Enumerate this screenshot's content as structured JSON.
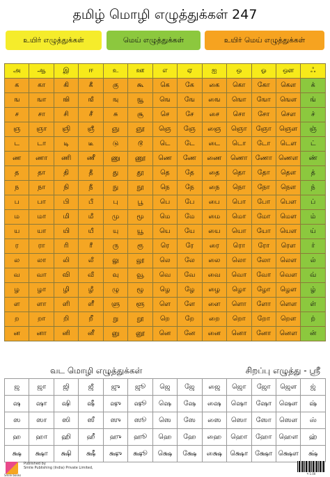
{
  "title": "தமிழ் மொழி எழுத்துக்கள் 247",
  "badges": [
    "உயிர் எழுத்துக்கள்",
    "மெய் எழுத்துக்கள்",
    "உயிர் மெய் எழுத்துக்கள்"
  ],
  "main_grid": [
    [
      "அ",
      "ஆ",
      "இ",
      "ஈ",
      "உ",
      "ஊ",
      "எ",
      "ஏ",
      "ஐ",
      "ஒ",
      "ஓ",
      "ஔ",
      "ஃ"
    ],
    [
      "க",
      "கா",
      "கி",
      "கீ",
      "கு",
      "கூ",
      "கெ",
      "கே",
      "கை",
      "கொ",
      "கோ",
      "கௌ",
      "க்"
    ],
    [
      "ங",
      "ஙா",
      "ஙி",
      "ஙீ",
      "ஙு",
      "ஙூ",
      "ஙெ",
      "ஙே",
      "ஙை",
      "ஙொ",
      "ஙோ",
      "ஙௌ",
      "ங்"
    ],
    [
      "ச",
      "சா",
      "சி",
      "சீ",
      "சு",
      "சூ",
      "செ",
      "சே",
      "சை",
      "சொ",
      "சோ",
      "சௌ",
      "ச்"
    ],
    [
      "ஞ",
      "ஞா",
      "ஞி",
      "ஞீ",
      "ஞு",
      "ஞூ",
      "ஞெ",
      "ஞே",
      "ஞை",
      "ஞொ",
      "ஞோ",
      "ஞௌ",
      "ஞ்"
    ],
    [
      "ட",
      "டா",
      "டி",
      "டீ",
      "டு",
      "டூ",
      "டெ",
      "டே",
      "டை",
      "டொ",
      "டோ",
      "டௌ",
      "ட்"
    ],
    [
      "ண",
      "ணா",
      "ணி",
      "ணீ",
      "ணு",
      "ணூ",
      "ணெ",
      "ணே",
      "ணை",
      "ணொ",
      "ணோ",
      "ணௌ",
      "ண்"
    ],
    [
      "த",
      "தா",
      "தி",
      "தீ",
      "து",
      "தூ",
      "தெ",
      "தே",
      "தை",
      "தொ",
      "தோ",
      "தௌ",
      "த்"
    ],
    [
      "ந",
      "நா",
      "நி",
      "நீ",
      "நு",
      "நூ",
      "நெ",
      "நே",
      "நை",
      "நொ",
      "நோ",
      "நௌ",
      "ந்"
    ],
    [
      "ப",
      "பா",
      "பி",
      "பீ",
      "பு",
      "பூ",
      "பெ",
      "பே",
      "பை",
      "பொ",
      "போ",
      "பௌ",
      "ப்"
    ],
    [
      "ம",
      "மா",
      "மி",
      "மீ",
      "மு",
      "மூ",
      "மெ",
      "மே",
      "மை",
      "மொ",
      "மோ",
      "மௌ",
      "ம்"
    ],
    [
      "ய",
      "யா",
      "யி",
      "யீ",
      "யு",
      "யூ",
      "யெ",
      "யே",
      "யை",
      "யொ",
      "யோ",
      "யௌ",
      "ய்"
    ],
    [
      "ர",
      "ரா",
      "ரி",
      "ரீ",
      "ரு",
      "ரூ",
      "ரெ",
      "ரே",
      "ரை",
      "ரொ",
      "ரோ",
      "ரௌ",
      "ர்"
    ],
    [
      "ல",
      "லா",
      "லி",
      "லீ",
      "லு",
      "லூ",
      "லெ",
      "லே",
      "லை",
      "லொ",
      "லோ",
      "லௌ",
      "ல்"
    ],
    [
      "வ",
      "வா",
      "வி",
      "வீ",
      "வு",
      "வூ",
      "வெ",
      "வே",
      "வை",
      "வொ",
      "வோ",
      "வௌ",
      "வ்"
    ],
    [
      "ழ",
      "ழா",
      "ழி",
      "ழீ",
      "ழு",
      "ழூ",
      "ழெ",
      "ழே",
      "ழை",
      "ழொ",
      "ழோ",
      "ழௌ",
      "ழ்"
    ],
    [
      "ள",
      "ளா",
      "ளி",
      "ளீ",
      "ளு",
      "ளூ",
      "ளெ",
      "ளே",
      "ளை",
      "ளொ",
      "ளோ",
      "ளௌ",
      "ள்"
    ],
    [
      "ற",
      "றா",
      "றி",
      "றீ",
      "று",
      "றூ",
      "றெ",
      "றே",
      "றை",
      "றொ",
      "றோ",
      "றௌ",
      "ற்"
    ],
    [
      "ன",
      "னா",
      "னி",
      "னீ",
      "னு",
      "னூ",
      "னெ",
      "னே",
      "னை",
      "னொ",
      "னோ",
      "னௌ",
      "ன்"
    ]
  ],
  "section_left": "வட மொழி எழுத்துக்கள்",
  "section_right": "சிறப்பு எழுத்து - ஸ்ரீ",
  "bottom_grid": [
    [
      "ஜ",
      "ஜா",
      "ஜி",
      "ஜீ",
      "ஜு",
      "ஜூ",
      "ஜெ",
      "ஜே",
      "ஜை",
      "ஜொ",
      "ஜோ",
      "ஜௌ",
      "ஜ்"
    ],
    [
      "ஷ",
      "ஷா",
      "ஷி",
      "ஷீ",
      "ஷு",
      "ஷூ",
      "ஷெ",
      "ஷே",
      "ஷை",
      "ஷொ",
      "ஷோ",
      "ஷௌ",
      "ஷ்"
    ],
    [
      "ஸ",
      "ஸா",
      "ஸி",
      "ஸீ",
      "ஸு",
      "ஸூ",
      "ஸெ",
      "ஸே",
      "ஸை",
      "ஸொ",
      "ஸோ",
      "ஸௌ",
      "ஸ்"
    ],
    [
      "ஹ",
      "ஹா",
      "ஹி",
      "ஹீ",
      "ஹு",
      "ஹூ",
      "ஹெ",
      "ஹே",
      "ஹை",
      "ஹொ",
      "ஹோ",
      "ஹௌ",
      "ஹ்"
    ],
    [
      "க்ஷ",
      "க்ஷா",
      "க்ஷி",
      "க்ஷீ",
      "க்ஷு",
      "க்ஷூ",
      "க்ஷெ",
      "க்ஷே",
      "க்ஷை",
      "க்ஷொ",
      "க்ஷோ",
      "க்ஷௌ",
      "க்ஷ்"
    ]
  ],
  "footer": {
    "logo_label": "Smile books",
    "publisher_line1": "Published by",
    "publisher_line2": "Smile Publishing (India) Private Limited,",
    "price": "₹ 1.00"
  }
}
